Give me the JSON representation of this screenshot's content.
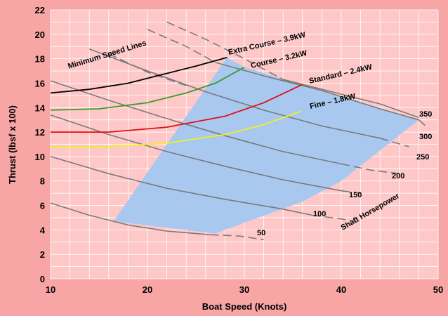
{
  "chart_data": {
    "type": "line",
    "title": "",
    "xlabel": "Boat Speed (Knots)",
    "ylabel": "Thrust (lbsf x 100)",
    "xlim": [
      10,
      50
    ],
    "ylim": [
      0,
      22
    ],
    "x_ticks": [
      10,
      20,
      30,
      40,
      50
    ],
    "y_ticks": [
      0,
      2,
      4,
      6,
      8,
      10,
      12,
      14,
      16,
      18,
      20,
      22
    ],
    "grid": true,
    "colors": {
      "background": "#f7a5a5",
      "plot_background": "#ffc8c8",
      "grid": "#ffffff",
      "operating_region": "#a8c8f0",
      "horsepower_lines": "#7a7a7a"
    },
    "operating_region": {
      "polygon": [
        [
          16.5,
          4.7
        ],
        [
          28.2,
          18.1
        ],
        [
          30.0,
          17.3
        ],
        [
          36.0,
          15.9
        ],
        [
          48.0,
          13.0
        ],
        [
          44.0,
          10.5
        ],
        [
          40.0,
          8.0
        ],
        [
          36.0,
          6.3
        ],
        [
          30.0,
          4.6
        ],
        [
          27.0,
          3.7
        ]
      ]
    },
    "series": [
      {
        "name": "Extra Course – 3.9kW",
        "color": "#000000",
        "x": [
          10,
          14,
          18,
          22,
          25,
          28.2
        ],
        "y": [
          15.2,
          15.5,
          16.0,
          16.8,
          17.4,
          18.1
        ]
      },
      {
        "name": "Course – 3.2kW",
        "color": "#3a9a2a",
        "x": [
          10,
          15,
          20,
          24,
          27,
          30
        ],
        "y": [
          13.8,
          13.9,
          14.4,
          15.2,
          16.0,
          17.3
        ]
      },
      {
        "name": "Standard – 2.4kW",
        "color": "#e01010",
        "x": [
          10,
          16,
          22,
          28,
          32,
          36
        ],
        "y": [
          12.0,
          12.0,
          12.4,
          13.3,
          14.4,
          15.9
        ]
      },
      {
        "name": "Fine – 1.8kW",
        "color": "#f0f020",
        "x": [
          10,
          16,
          22,
          28,
          32,
          35.8
        ],
        "y": [
          10.8,
          10.8,
          11.1,
          11.8,
          12.6,
          13.7
        ]
      }
    ],
    "horsepower_lines": [
      {
        "label": "50",
        "solid": [
          [
            10,
            6.2
          ],
          [
            14,
            5.2
          ],
          [
            18,
            4.4
          ],
          [
            22,
            3.9
          ],
          [
            26.5,
            3.6
          ]
        ],
        "dashed": [
          [
            26.5,
            3.6
          ],
          [
            29.5,
            3.5
          ],
          [
            32,
            3.2
          ]
        ]
      },
      {
        "label": "100",
        "solid": [
          [
            10,
            10.0
          ],
          [
            16,
            8.6
          ],
          [
            22,
            7.4
          ],
          [
            28,
            6.5
          ],
          [
            34,
            5.7
          ],
          [
            37,
            5.2
          ]
        ],
        "dashed": [
          [
            37,
            5.2
          ],
          [
            40,
            4.9
          ],
          [
            42,
            4.6
          ]
        ]
      },
      {
        "label": "150",
        "solid": [
          [
            10,
            13.4
          ],
          [
            16,
            11.8
          ],
          [
            22,
            10.4
          ],
          [
            28,
            9.2
          ],
          [
            34,
            8.1
          ],
          [
            40,
            7.2
          ]
        ],
        "dashed": [
          [
            40,
            7.2
          ],
          [
            42,
            7.0
          ]
        ]
      },
      {
        "label": "200",
        "solid": [
          [
            10,
            16.2
          ],
          [
            16,
            14.6
          ],
          [
            22,
            13.1
          ],
          [
            28,
            11.7
          ],
          [
            34,
            10.4
          ],
          [
            40,
            9.4
          ]
        ],
        "dashed": [
          [
            40,
            9.4
          ],
          [
            43,
            8.9
          ],
          [
            46,
            8.6
          ]
        ]
      },
      {
        "label": "250",
        "solid": [
          [
            14,
            18.8
          ],
          [
            20,
            17.0
          ],
          [
            26,
            15.3
          ],
          [
            32,
            13.8
          ],
          [
            38,
            12.5
          ],
          [
            44,
            11.5
          ]
        ],
        "dashed": [
          [
            44,
            11.5
          ],
          [
            47,
            10.8
          ]
        ]
      },
      {
        "label": "300",
        "solid": [
          [
            27,
            17.7
          ],
          [
            32,
            16.6
          ],
          [
            38,
            15.4
          ],
          [
            44,
            13.9
          ],
          [
            48,
            13.0
          ]
        ],
        "dashed": [
          [
            20,
            20.4
          ],
          [
            24,
            19.0
          ],
          [
            27,
            17.7
          ]
        ],
        "dashed2": [
          [
            48,
            13.0
          ],
          [
            49,
            12.3
          ]
        ]
      },
      {
        "label": "350",
        "solid": [
          [
            34,
            16.3
          ],
          [
            40,
            15.1
          ],
          [
            44,
            14.3
          ],
          [
            48,
            13.2
          ]
        ],
        "dashed": [
          [
            22,
            21.0
          ],
          [
            26,
            19.6
          ],
          [
            30,
            18.0
          ],
          [
            34,
            16.3
          ]
        ]
      },
      {
        "label": "",
        "solid": [],
        "dashed": [
          [
            16,
            18.4
          ],
          [
            20,
            16.9
          ],
          [
            24,
            15.8
          ]
        ]
      }
    ],
    "annotations": {
      "minimum_speed_lines": "Minimum Speed Lines",
      "shaft_horsepower": "Shaft Horsepower"
    },
    "label_text": {
      "extra_course": "Extra Course – 3.9kW",
      "course": "Course – 3.2kW",
      "standard": "Standard – 2.4kW",
      "fine": "Fine – 1.8kW",
      "hp_50": "50",
      "hp_100": "100",
      "hp_150": "150",
      "hp_200": "200",
      "hp_250": "250",
      "hp_300": "300",
      "hp_350": "350"
    }
  }
}
